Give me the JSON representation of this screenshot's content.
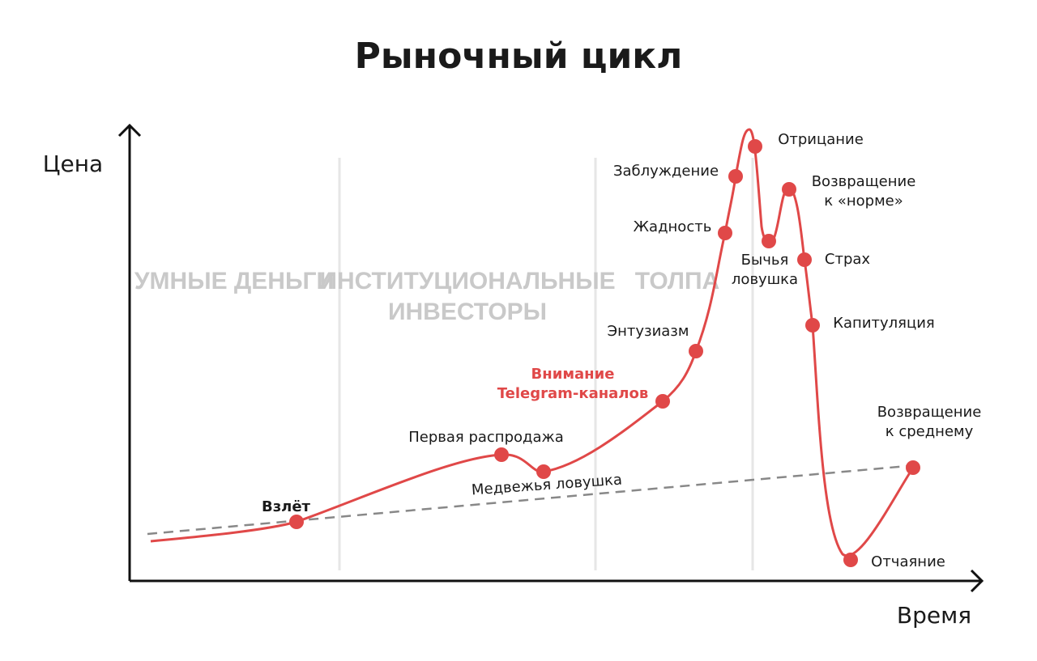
{
  "title": "Рыночный цикл",
  "axes": {
    "y": "Цена",
    "x": "Время"
  },
  "phases": [
    {
      "lines": [
        "УМНЫЕ ДЕНЬГИ"
      ]
    },
    {
      "lines": [
        "ИНСТИТУЦИОНАЛЬНЫЕ",
        "ИНВЕСТОРЫ"
      ]
    },
    {
      "lines": [
        "ТОЛПА"
      ]
    }
  ],
  "stages": [
    {
      "lines": [
        "Взлёт"
      ]
    },
    {
      "lines": [
        "Первая распродажа"
      ]
    },
    {
      "lines": [
        "Медвежья ловушка"
      ]
    },
    {
      "lines": [
        "Внимание",
        "Telegram-каналов"
      ]
    },
    {
      "lines": [
        "Энтузиазм"
      ]
    },
    {
      "lines": [
        "Жадность"
      ]
    },
    {
      "lines": [
        "Заблуждение"
      ]
    },
    {
      "lines": [
        "Отрицание"
      ]
    },
    {
      "lines": [
        "Бычья",
        "ловушка"
      ]
    },
    {
      "lines": [
        "Возвращение",
        "к «норме»"
      ]
    },
    {
      "lines": [
        "Страх"
      ]
    },
    {
      "lines": [
        "Капитуляция"
      ]
    },
    {
      "lines": [
        "Отчаяние"
      ]
    },
    {
      "lines": [
        "Возвращение",
        "к среднему"
      ]
    }
  ]
}
